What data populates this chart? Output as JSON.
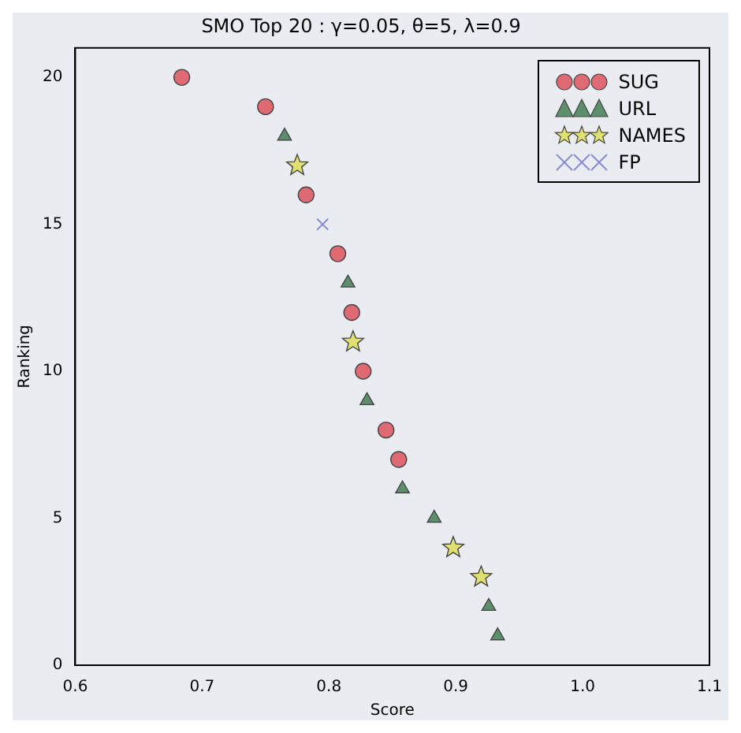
{
  "chart_data": {
    "type": "scatter",
    "title": "SMO Top 20 : γ=0.05, θ=5, λ=0.9",
    "xlabel": "Score",
    "ylabel": "Ranking",
    "series": [
      {
        "name": "SUG",
        "color": "#e06a74",
        "marker": "circle",
        "x": [
          0.684,
          0.75,
          0.782,
          0.807,
          0.818,
          0.827,
          0.845,
          0.855
        ],
        "values": [
          20,
          19,
          16,
          14,
          12,
          10,
          8,
          7
        ]
      },
      {
        "name": "URL",
        "color": "#5e8f6c",
        "marker": "triangle",
        "x": [
          0.765,
          0.815,
          0.83,
          0.858,
          0.883,
          0.926,
          0.933
        ],
        "values": [
          18,
          13,
          9,
          6,
          5,
          2,
          1
        ]
      },
      {
        "name": "NAMES",
        "color": "#e0e070",
        "marker": "star",
        "x": [
          0.775,
          0.819,
          0.898,
          0.92
        ],
        "values": [
          17,
          11,
          4,
          3
        ]
      },
      {
        "name": "FP",
        "color": "#8a8ad0",
        "marker": "cross",
        "x": [
          0.795
        ],
        "values": [
          15
        ]
      }
    ],
    "xlim": [
      0.6,
      1.1
    ],
    "xticks": [
      0.6,
      0.7,
      0.8,
      0.9,
      {
        "value": 1.0,
        "label": "1.0"
      },
      1.1
    ],
    "ylim": [
      0,
      21
    ],
    "yticks": [
      0,
      5,
      10,
      15,
      20
    ],
    "grid": false,
    "legend": "top right"
  }
}
